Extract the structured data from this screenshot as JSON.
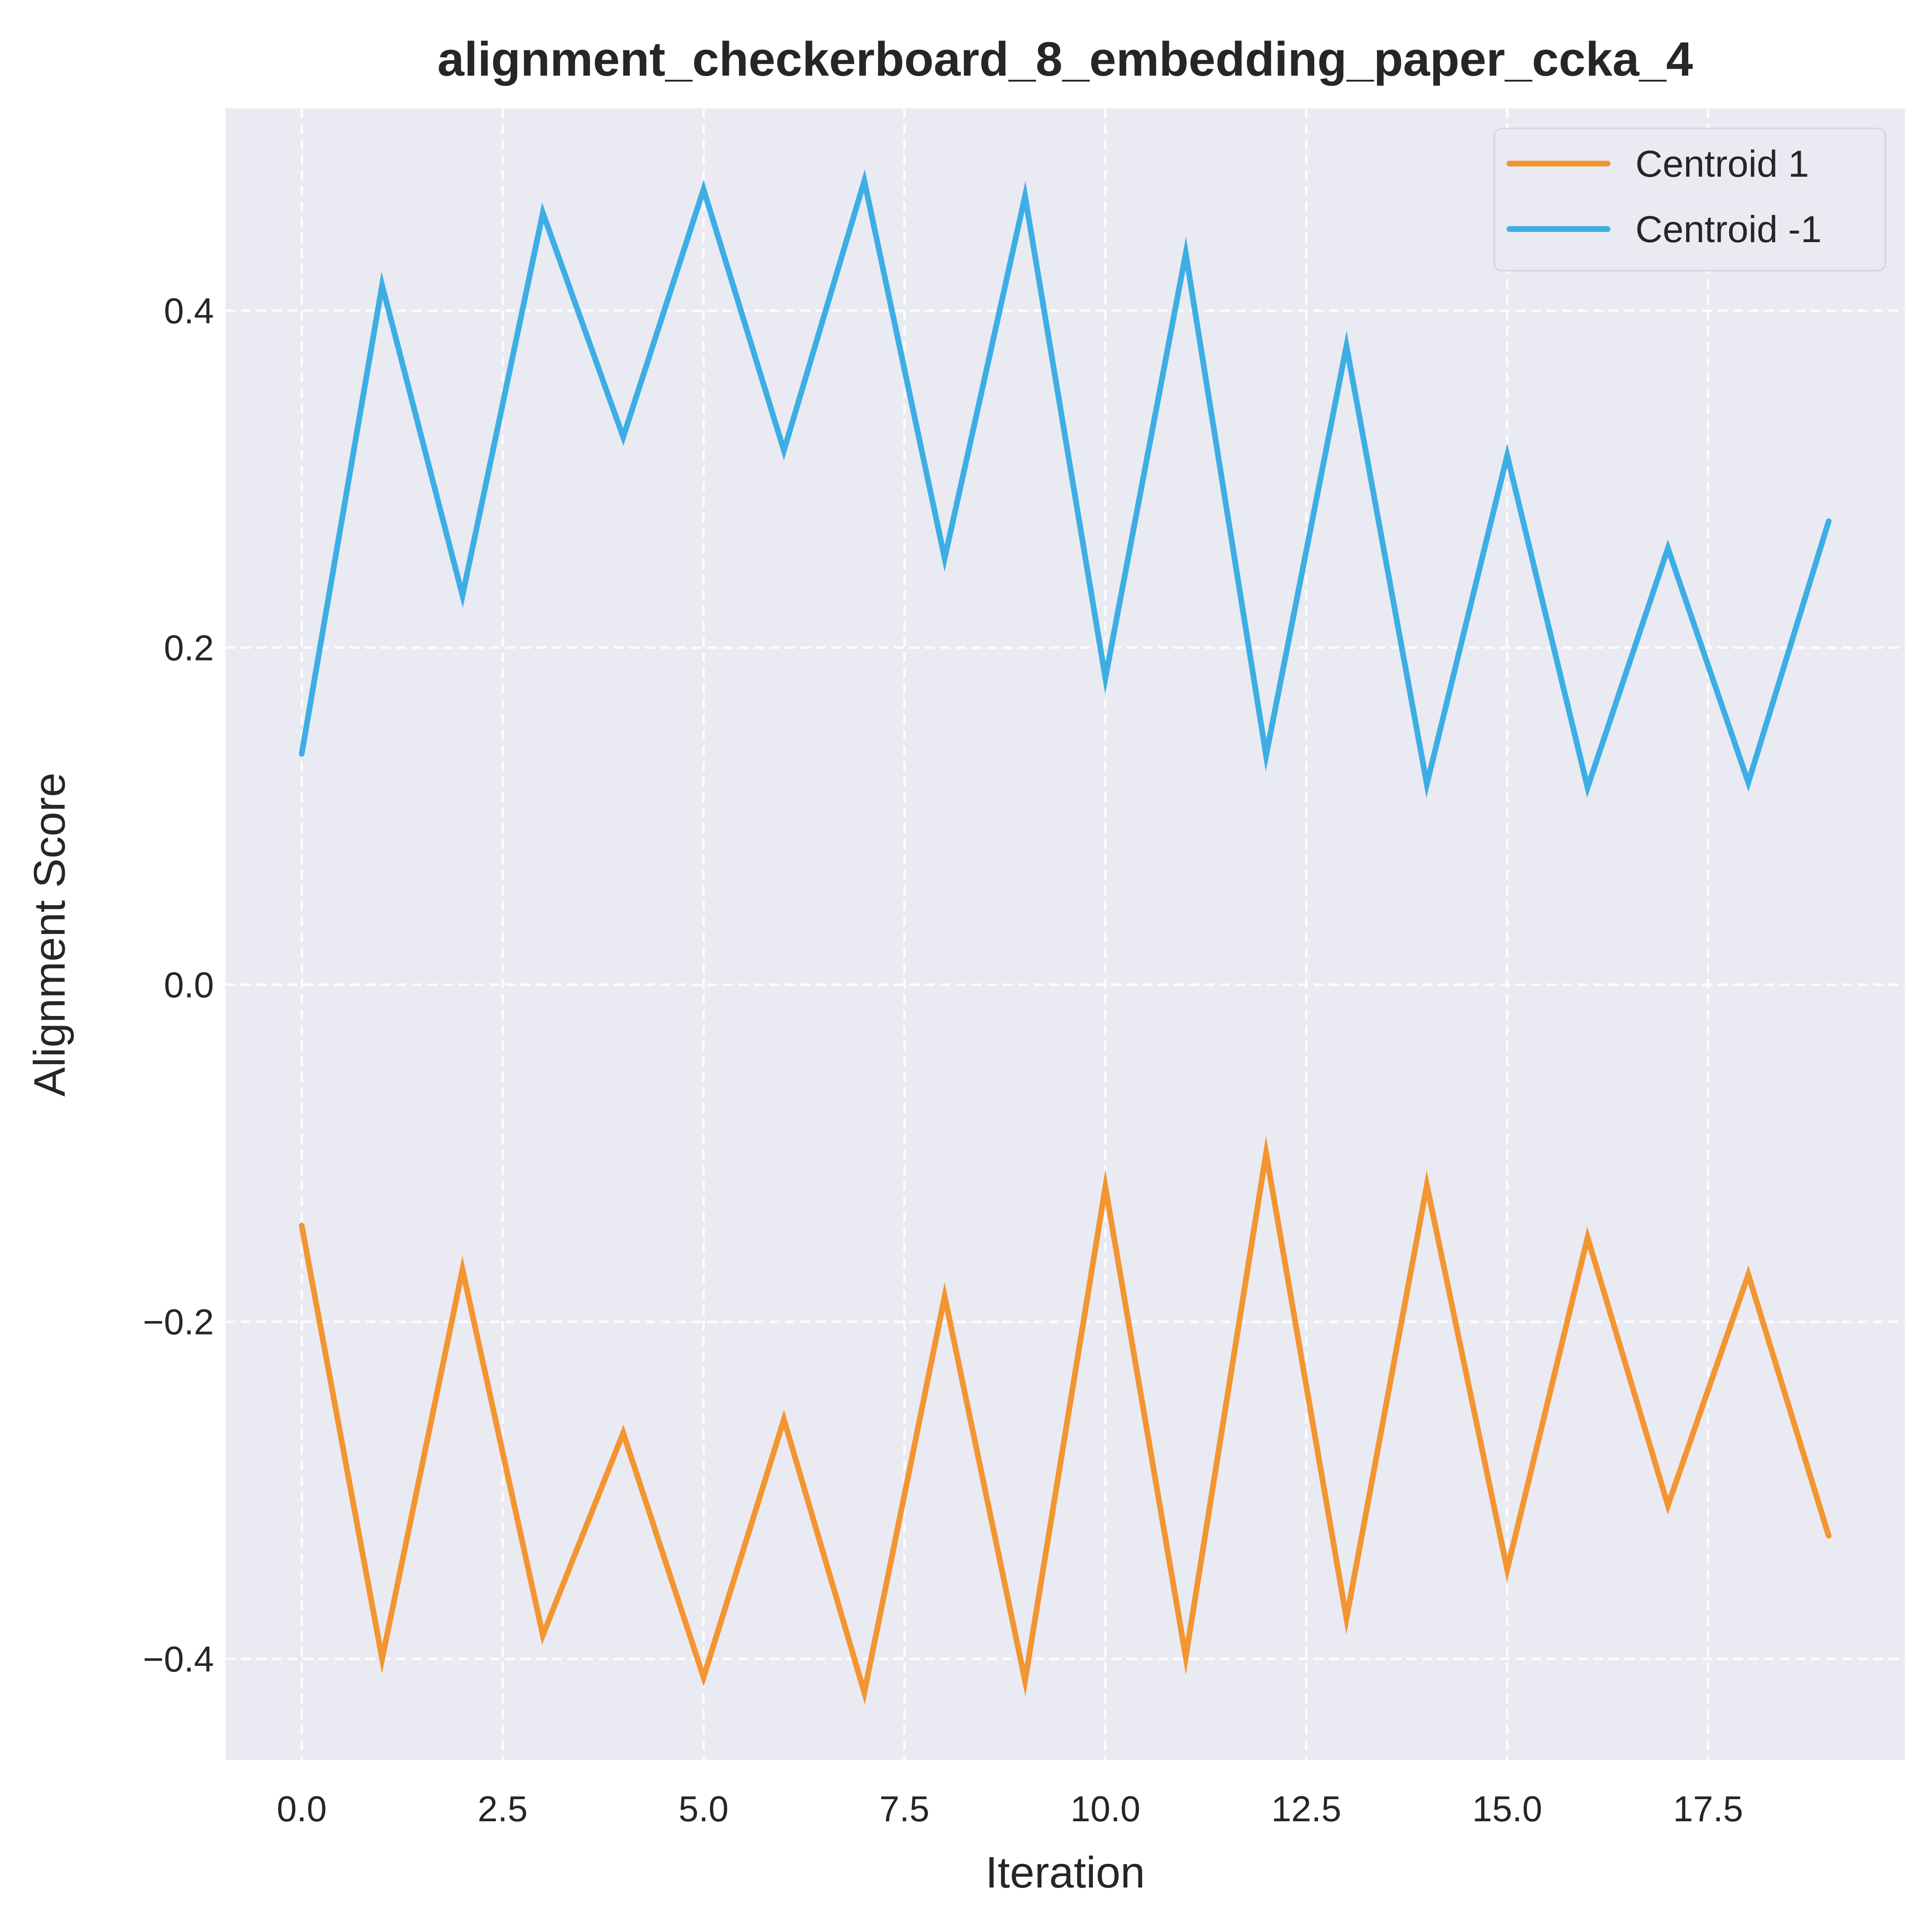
{
  "chart_data": {
    "type": "line",
    "title": "alignment_checkerboard_8_embedding_paper_ccka_4",
    "xlabel": "Iteration",
    "ylabel": "Alignment Score",
    "xlim": [
      -0.95,
      19.95
    ],
    "ylim": [
      -0.46,
      0.52
    ],
    "x_ticks": [
      0.0,
      2.5,
      5.0,
      7.5,
      10.0,
      12.5,
      15.0,
      17.5
    ],
    "x_tick_labels": [
      "0.0",
      "2.5",
      "5.0",
      "7.5",
      "10.0",
      "12.5",
      "15.0",
      "17.5"
    ],
    "y_ticks": [
      -0.4,
      -0.2,
      0.0,
      0.2,
      0.4
    ],
    "y_tick_labels": [
      "−0.4",
      "−0.2",
      "0.0",
      "0.2",
      "0.4"
    ],
    "grid": true,
    "legend_position": "top-right",
    "x": [
      0,
      1,
      2,
      3,
      4,
      5,
      6,
      7,
      8,
      9,
      10,
      11,
      12,
      13,
      14,
      15,
      16,
      17,
      18,
      19
    ],
    "series": [
      {
        "name": "Centroid 1",
        "color": "#F39530",
        "values": [
          -0.143,
          -0.4,
          -0.169,
          -0.386,
          -0.266,
          -0.411,
          -0.258,
          -0.42,
          -0.185,
          -0.413,
          -0.12,
          -0.399,
          -0.1,
          -0.376,
          -0.119,
          -0.347,
          -0.15,
          -0.309,
          -0.172,
          -0.327
        ]
      },
      {
        "name": "Centroid -1",
        "color": "#3DAEE5",
        "values": [
          0.137,
          0.415,
          0.231,
          0.458,
          0.325,
          0.472,
          0.317,
          0.477,
          0.253,
          0.468,
          0.182,
          0.434,
          0.136,
          0.379,
          0.119,
          0.314,
          0.117,
          0.259,
          0.12,
          0.275
        ]
      }
    ],
    "colors": {
      "plot_background": "#EAEAF2",
      "text": "#262626",
      "grid": "#FFFFFF"
    }
  }
}
